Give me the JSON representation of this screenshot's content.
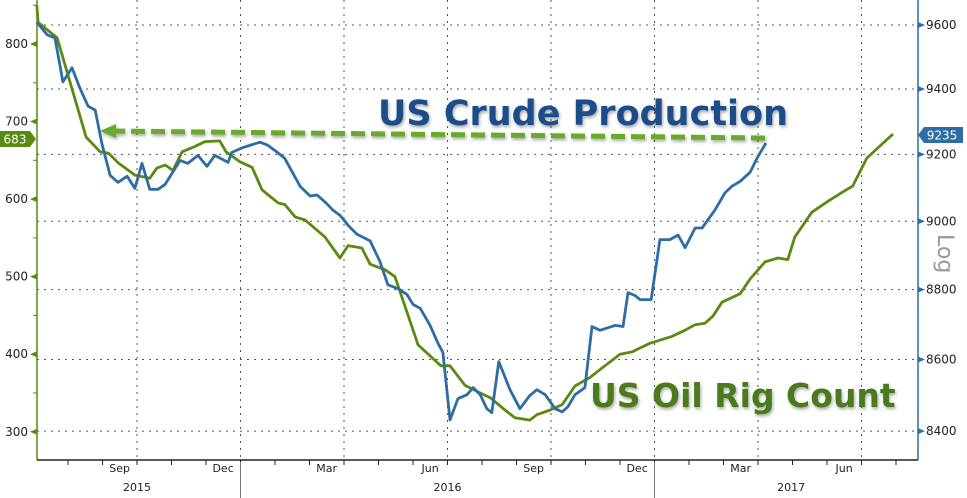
{
  "chart_data": {
    "type": "line",
    "title": "",
    "annotations": {
      "production_label": "US Crude Production",
      "rig_label": "US Oil Rig Count",
      "log_label": "Log"
    },
    "colors": {
      "production": "#2e6da4",
      "rig": "#5a8a12",
      "arrow": "#6aaa2a",
      "production_text": "#1f4e8a",
      "rig_text": "#4a7a1a"
    },
    "x_axis": {
      "months": [
        {
          "label": "Sep",
          "t": 2015.708
        },
        {
          "label": "Dec",
          "t": 2015.958
        },
        {
          "label": "Mar",
          "t": 2016.208
        },
        {
          "label": "Jun",
          "t": 2016.458
        },
        {
          "label": "Sep",
          "t": 2016.708
        },
        {
          "label": "Dec",
          "t": 2016.958
        },
        {
          "label": "Mar",
          "t": 2017.208
        },
        {
          "label": "Jun",
          "t": 2017.458
        }
      ],
      "years": [
        {
          "label": "2015",
          "t": 2015.75
        },
        {
          "label": "2016",
          "t": 2016.5
        },
        {
          "label": "2017",
          "t": 2017.33
        }
      ],
      "range": [
        2015.508,
        2017.635
      ]
    },
    "left_axis": {
      "series": "US Oil Rig Count",
      "ticks": [
        "300",
        "400",
        "500",
        "600",
        "700",
        "800"
      ],
      "range": [
        270,
        857
      ],
      "last_value": "683"
    },
    "right_axis": {
      "series": "US Crude Production",
      "scale": "log",
      "ticks": [
        "8400",
        "8600",
        "8800",
        "9000",
        "9200",
        "9400",
        "9600"
      ],
      "last_value": "9235"
    },
    "series": [
      {
        "name": "US Oil Rig Count",
        "axis": "left",
        "points": [
          [
            2015.508,
            850
          ],
          [
            2015.511,
            828
          ],
          [
            2015.557,
            808
          ],
          [
            2015.627,
            680
          ],
          [
            2015.661,
            661
          ],
          [
            2015.682,
            659
          ],
          [
            2015.704,
            647
          ],
          [
            2015.745,
            631
          ],
          [
            2015.781,
            627
          ],
          [
            2015.798,
            640
          ],
          [
            2015.818,
            644
          ],
          [
            2015.837,
            637
          ],
          [
            2015.859,
            661
          ],
          [
            2015.89,
            668
          ],
          [
            2015.914,
            674
          ],
          [
            2015.95,
            675
          ],
          [
            2015.965,
            661
          ],
          [
            2015.999,
            648
          ],
          [
            2016.028,
            641
          ],
          [
            2016.052,
            612
          ],
          [
            2016.091,
            595
          ],
          [
            2016.107,
            593
          ],
          [
            2016.132,
            577
          ],
          [
            2016.156,
            573
          ],
          [
            2016.204,
            551
          ],
          [
            2016.24,
            524
          ],
          [
            2016.26,
            540
          ],
          [
            2016.293,
            537
          ],
          [
            2016.313,
            516
          ],
          [
            2016.349,
            509
          ],
          [
            2016.373,
            500
          ],
          [
            2016.429,
            412
          ],
          [
            2016.484,
            385
          ],
          [
            2016.506,
            385
          ],
          [
            2016.542,
            360
          ],
          [
            2016.579,
            350
          ],
          [
            2016.603,
            344
          ],
          [
            2016.639,
            328
          ],
          [
            2016.663,
            318
          ],
          [
            2016.699,
            315
          ],
          [
            2016.716,
            322
          ],
          [
            2016.748,
            328
          ],
          [
            2016.777,
            335
          ],
          [
            2016.808,
            359
          ],
          [
            2016.844,
            370
          ],
          [
            2016.868,
            380
          ],
          [
            2016.917,
            400
          ],
          [
            2016.946,
            403
          ],
          [
            2016.965,
            408
          ],
          [
            2016.989,
            414
          ],
          [
            2017.013,
            418
          ],
          [
            2017.042,
            423
          ],
          [
            2017.074,
            431
          ],
          [
            2017.098,
            438
          ],
          [
            2017.122,
            440
          ],
          [
            2017.141,
            449
          ],
          [
            2017.163,
            467
          ],
          [
            2017.207,
            478
          ],
          [
            2017.231,
            497
          ],
          [
            2017.267,
            519
          ],
          [
            2017.298,
            524
          ],
          [
            2017.322,
            522
          ],
          [
            2017.339,
            551
          ],
          [
            2017.38,
            583
          ],
          [
            2017.424,
            599
          ],
          [
            2017.448,
            607
          ],
          [
            2017.479,
            617
          ],
          [
            2017.513,
            653
          ],
          [
            2017.576,
            684
          ]
        ]
      },
      {
        "name": "US Crude Production",
        "axis": "right",
        "points": [
          [
            2015.508,
            9609
          ],
          [
            2015.533,
            9569
          ],
          [
            2015.552,
            9559
          ],
          [
            2015.571,
            9422
          ],
          [
            2015.593,
            9466
          ],
          [
            2015.612,
            9403
          ],
          [
            2015.632,
            9347
          ],
          [
            2015.649,
            9335
          ],
          [
            2015.665,
            9234
          ],
          [
            2015.685,
            9137
          ],
          [
            2015.704,
            9116
          ],
          [
            2015.726,
            9134
          ],
          [
            2015.745,
            9098
          ],
          [
            2015.762,
            9173
          ],
          [
            2015.781,
            9095
          ],
          [
            2015.801,
            9095
          ],
          [
            2015.818,
            9110
          ],
          [
            2015.854,
            9182
          ],
          [
            2015.873,
            9173
          ],
          [
            2015.897,
            9197
          ],
          [
            2015.919,
            9164
          ],
          [
            2015.938,
            9197
          ],
          [
            2015.97,
            9176
          ],
          [
            2015.979,
            9206
          ],
          [
            2016.006,
            9221
          ],
          [
            2016.047,
            9237
          ],
          [
            2016.066,
            9228
          ],
          [
            2016.083,
            9212
          ],
          [
            2016.107,
            9188
          ],
          [
            2016.144,
            9104
          ],
          [
            2016.168,
            9075
          ],
          [
            2016.185,
            9078
          ],
          [
            2016.207,
            9054
          ],
          [
            2016.223,
            9033
          ],
          [
            2016.24,
            9018
          ],
          [
            2016.26,
            8988
          ],
          [
            2016.281,
            8962
          ],
          [
            2016.313,
            8942
          ],
          [
            2016.337,
            8881
          ],
          [
            2016.356,
            8814
          ],
          [
            2016.38,
            8803
          ],
          [
            2016.402,
            8786
          ],
          [
            2016.417,
            8757
          ],
          [
            2016.434,
            8746
          ],
          [
            2016.458,
            8697
          ],
          [
            2016.477,
            8646
          ],
          [
            2016.489,
            8620
          ],
          [
            2016.506,
            8431
          ],
          [
            2016.525,
            8490
          ],
          [
            2016.547,
            8501
          ],
          [
            2016.562,
            8521
          ],
          [
            2016.579,
            8501
          ],
          [
            2016.595,
            8462
          ],
          [
            2016.607,
            8451
          ],
          [
            2016.624,
            8594
          ],
          [
            2016.651,
            8515
          ],
          [
            2016.675,
            8462
          ],
          [
            2016.699,
            8499
          ],
          [
            2016.716,
            8515
          ],
          [
            2016.736,
            8501
          ],
          [
            2016.76,
            8462
          ],
          [
            2016.777,
            8453
          ],
          [
            2016.791,
            8468
          ],
          [
            2016.808,
            8501
          ],
          [
            2016.832,
            8521
          ],
          [
            2016.849,
            8694
          ],
          [
            2016.868,
            8683
          ],
          [
            2016.905,
            8697
          ],
          [
            2016.924,
            8694
          ],
          [
            2016.936,
            8791
          ],
          [
            2016.953,
            8783
          ],
          [
            2016.965,
            8771
          ],
          [
            2016.992,
            8771
          ],
          [
            2017.013,
            8946
          ],
          [
            2017.037,
            8946
          ],
          [
            2017.057,
            8959
          ],
          [
            2017.074,
            8922
          ],
          [
            2017.098,
            8980
          ],
          [
            2017.115,
            8980
          ],
          [
            2017.146,
            9033
          ],
          [
            2017.17,
            9084
          ],
          [
            2017.187,
            9104
          ],
          [
            2017.207,
            9119
          ],
          [
            2017.231,
            9146
          ],
          [
            2017.25,
            9194
          ],
          [
            2017.269,
            9234
          ]
        ]
      }
    ]
  }
}
